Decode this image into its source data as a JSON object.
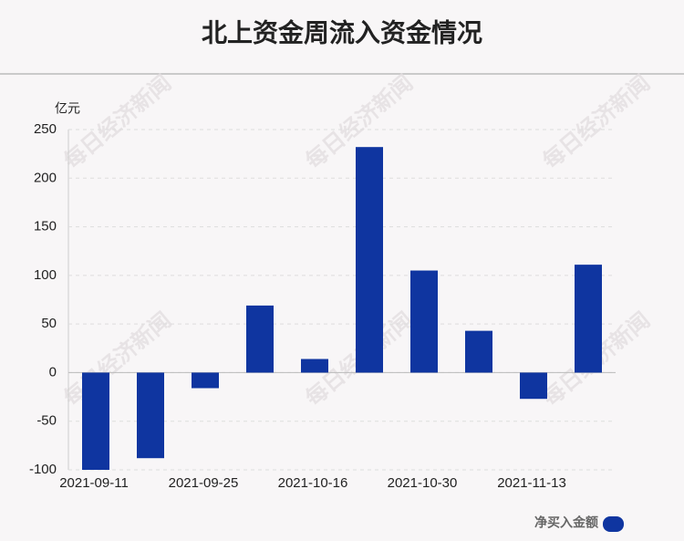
{
  "chart_data": {
    "type": "bar",
    "title": "北上资金周流入资金情况",
    "y_unit": "亿元",
    "watermark": "每日经济新闻",
    "categories": [
      "2021-09-11",
      null,
      "2021-09-25",
      null,
      "2021-10-16",
      null,
      "2021-10-30",
      null,
      "2021-11-13",
      null
    ],
    "series": [
      {
        "name": "净买入金额",
        "color": "#0f35a0",
        "values": [
          -100,
          -88,
          -16,
          69,
          14,
          232,
          105,
          43,
          -27,
          111
        ]
      }
    ],
    "ylim": [
      -100,
      250
    ],
    "yticks": [
      -100,
      -50,
      0,
      50,
      100,
      150,
      200,
      250
    ],
    "grid": true
  }
}
